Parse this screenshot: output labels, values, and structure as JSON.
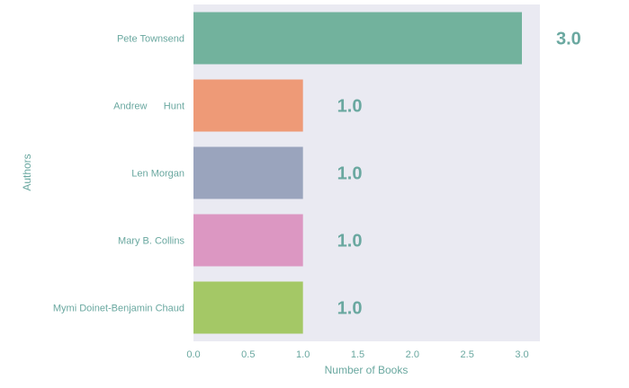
{
  "chart_data": {
    "type": "bar",
    "orientation": "horizontal",
    "categories": [
      "Pete Townsend",
      "Andrew      Hunt",
      "Len Morgan",
      "Mary B. Collins",
      "Mymi Doinet-Benjamin Chaud"
    ],
    "values": [
      3.0,
      1.0,
      1.0,
      1.0,
      1.0
    ],
    "data_labels": [
      "3.0",
      "1.0",
      "1.0",
      "1.0",
      "1.0"
    ],
    "bar_colors": [
      "#72b29d",
      "#ee9a77",
      "#9aa4bd",
      "#dc97c2",
      "#a4c866"
    ],
    "xlabel": "Number of Books",
    "ylabel": "Authors",
    "xlim": [
      0,
      3.15
    ],
    "xticks": [
      "0.0",
      "0.5",
      "1.0",
      "1.5",
      "2.0",
      "2.5",
      "3.0"
    ],
    "grid": false,
    "background_color": "#eaeaf2",
    "text_color": "#6aa8a0"
  }
}
